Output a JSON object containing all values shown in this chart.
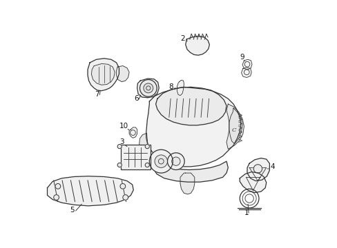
{
  "background_color": "#ffffff",
  "line_color": "#333333",
  "label_color": "#111111",
  "fig_width": 4.89,
  "fig_height": 3.6,
  "dpi": 100,
  "lw": 0.9,
  "lw_thin": 0.6,
  "fill_color": "#f8f8f8",
  "fill_color2": "#eeeeee"
}
